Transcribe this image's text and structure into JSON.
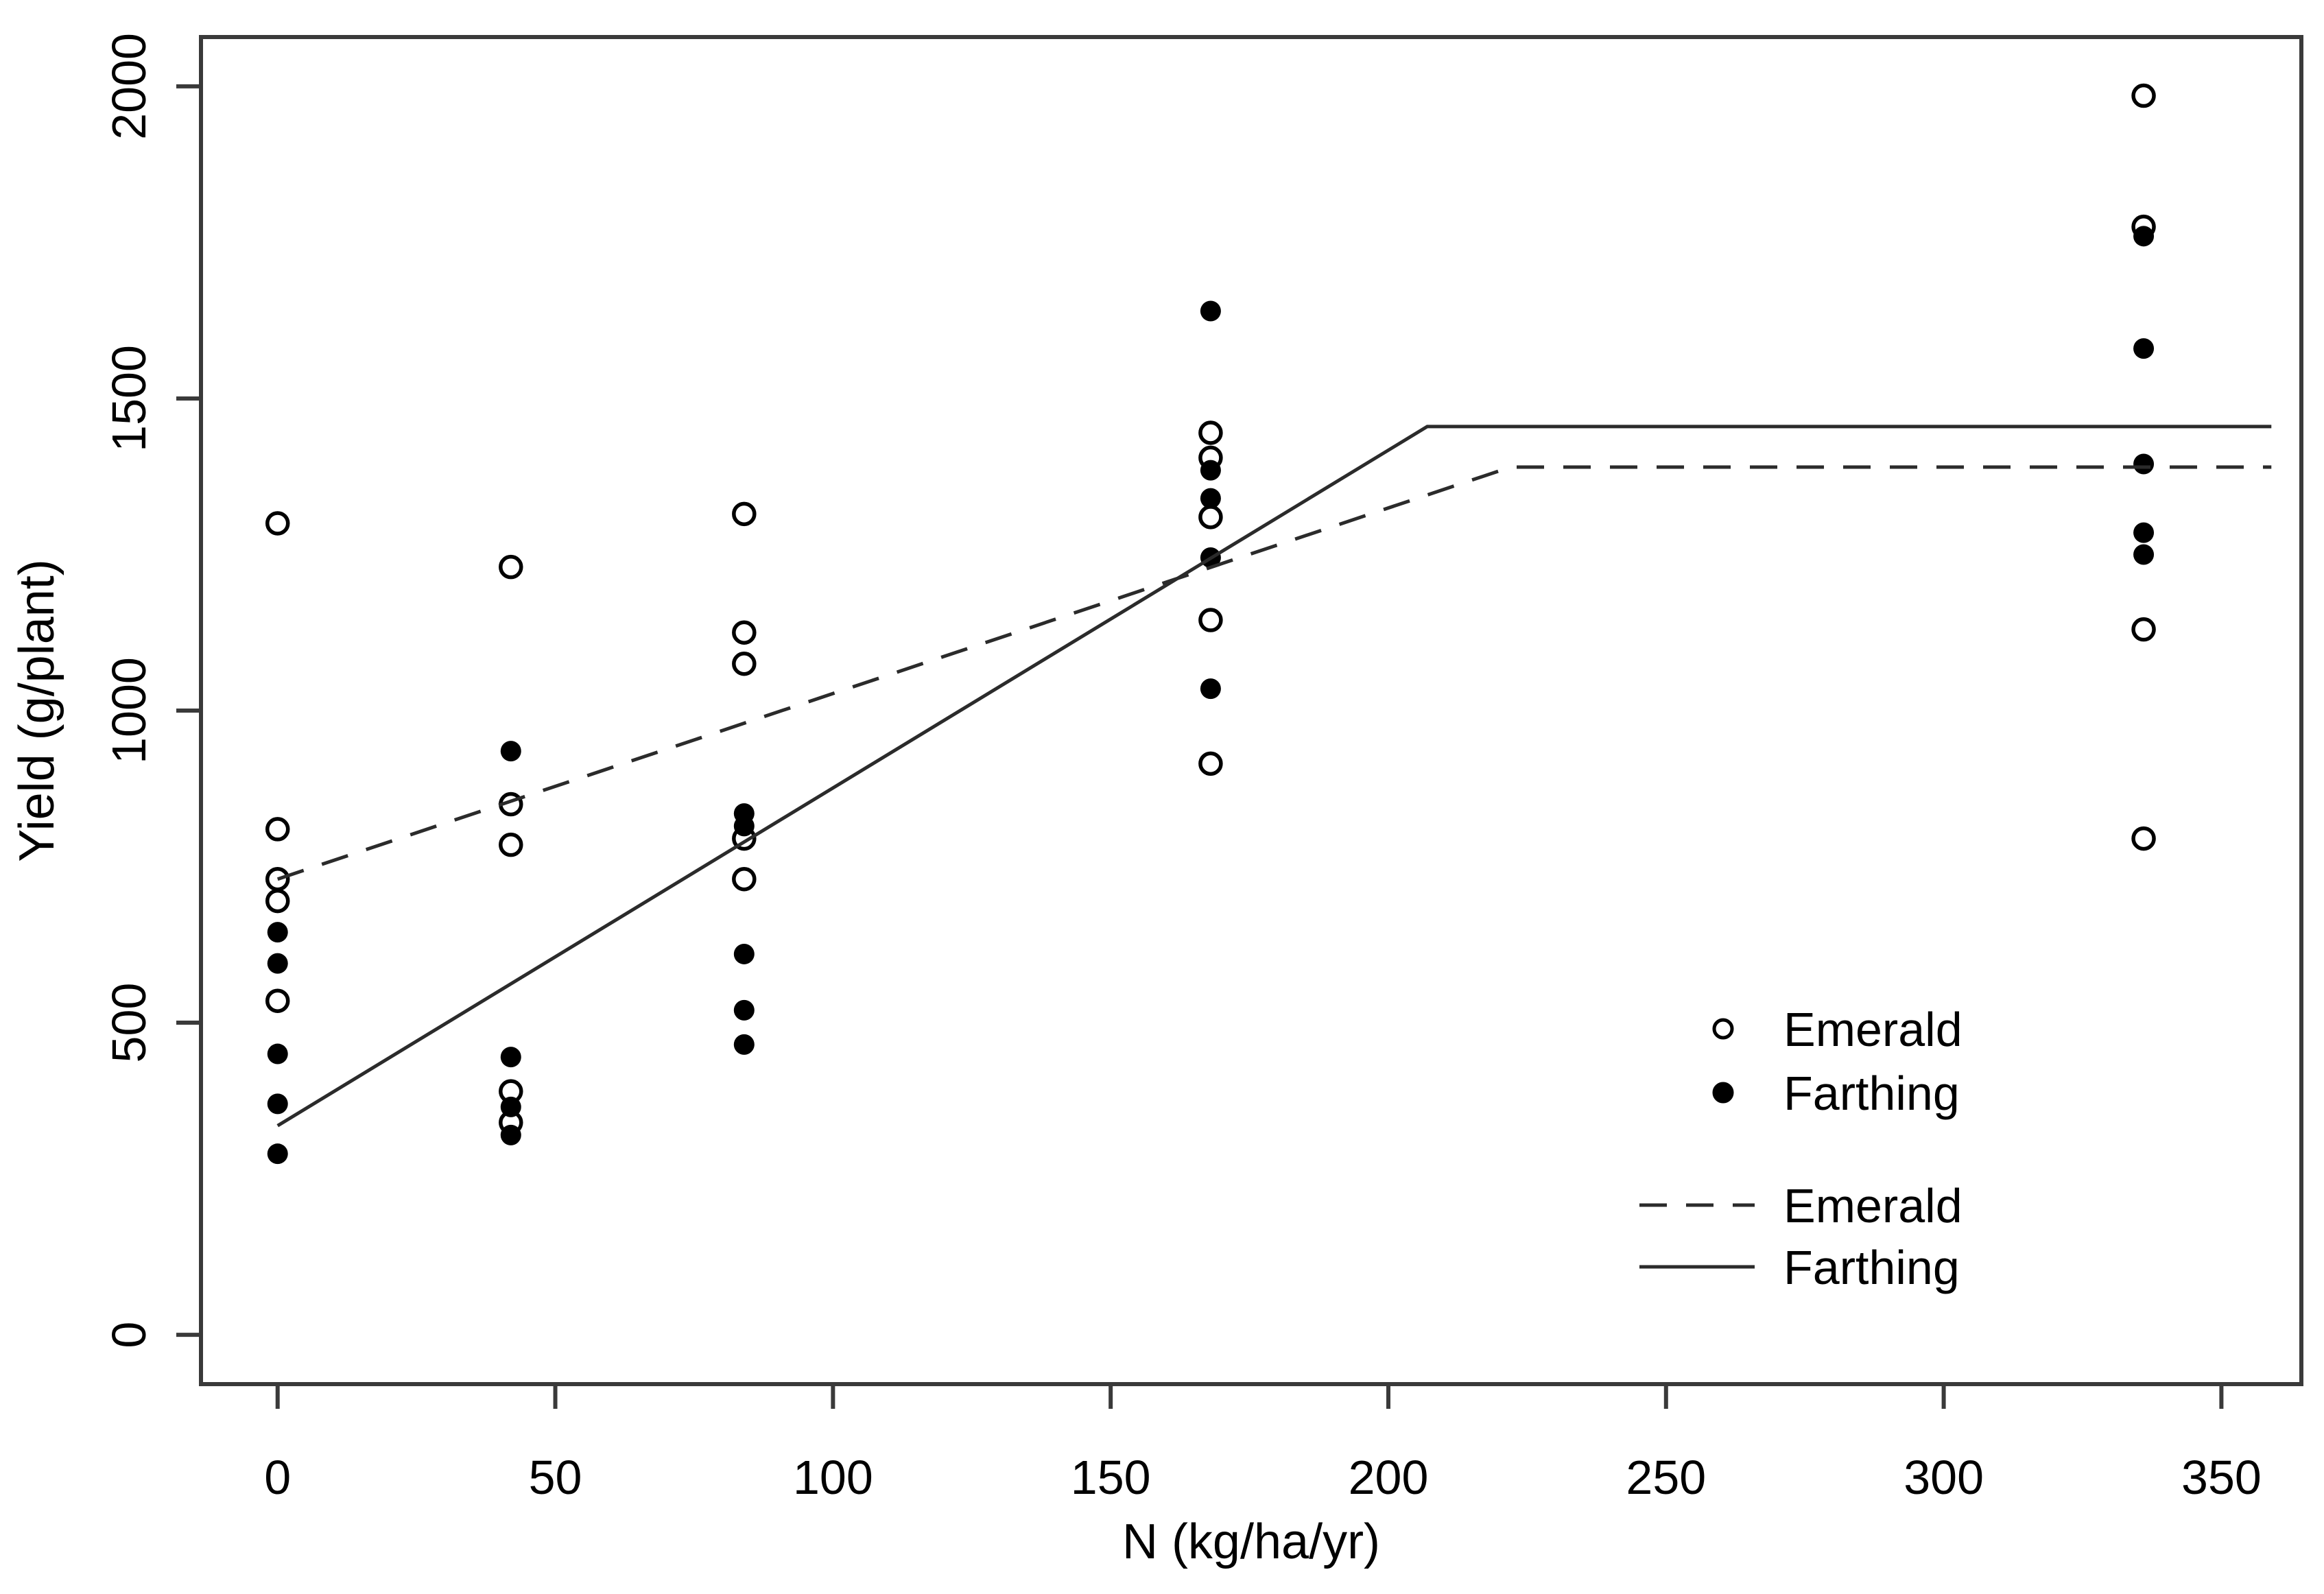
{
  "figure": {
    "background": "#ffffff",
    "axis_color": "#3a3a3a",
    "text_color": "#000000",
    "point_color": "#000000"
  },
  "chart_data": {
    "type": "scatter",
    "title": "",
    "xlabel": "N (kg/ha/yr)",
    "ylabel": "Yield (g/plant)",
    "xlim": [
      -13.8,
      364.4
    ],
    "ylim": [
      -79,
      2079
    ],
    "x_ticks": [
      0,
      50,
      100,
      150,
      200,
      250,
      300,
      350
    ],
    "y_ticks": [
      0,
      500,
      1000,
      1500,
      2000
    ],
    "grid": false,
    "legend_position": "inside-lower-right",
    "series": [
      {
        "name": "Emerald",
        "marker": "open-circle",
        "points": [
          [
            0,
            1300
          ],
          [
            0,
            810
          ],
          [
            0,
            730
          ],
          [
            0,
            695
          ],
          [
            0,
            535
          ],
          [
            42,
            1230
          ],
          [
            42,
            850
          ],
          [
            42,
            785
          ],
          [
            42,
            390
          ],
          [
            42,
            340
          ],
          [
            84,
            1315
          ],
          [
            84,
            1125
          ],
          [
            84,
            1075
          ],
          [
            84,
            795
          ],
          [
            84,
            730
          ],
          [
            168,
            1445
          ],
          [
            168,
            1405
          ],
          [
            168,
            1310
          ],
          [
            168,
            1145
          ],
          [
            168,
            915
          ],
          [
            336,
            1985
          ],
          [
            336,
            1775
          ],
          [
            336,
            1130
          ],
          [
            336,
            795
          ]
        ]
      },
      {
        "name": "Farthing",
        "marker": "filled-circle",
        "points": [
          [
            0,
            645
          ],
          [
            0,
            595
          ],
          [
            0,
            450
          ],
          [
            0,
            370
          ],
          [
            0,
            290
          ],
          [
            42,
            935
          ],
          [
            42,
            445
          ],
          [
            42,
            365
          ],
          [
            42,
            320
          ],
          [
            84,
            835
          ],
          [
            84,
            815
          ],
          [
            84,
            610
          ],
          [
            84,
            520
          ],
          [
            84,
            465
          ],
          [
            168,
            1640
          ],
          [
            168,
            1385
          ],
          [
            168,
            1340
          ],
          [
            168,
            1245
          ],
          [
            168,
            1035
          ],
          [
            336,
            1760
          ],
          [
            336,
            1580
          ],
          [
            336,
            1395
          ],
          [
            336,
            1285
          ],
          [
            336,
            1250
          ]
        ]
      }
    ],
    "fit_lines": [
      {
        "name": "Emerald",
        "style": "dashed",
        "model": "linear-plateau",
        "intercept": 730,
        "slope": 2.97,
        "breakpoint": 222,
        "plateau": 1390,
        "x_start": 0,
        "x_end": 359
      },
      {
        "name": "Farthing",
        "style": "solid",
        "model": "linear-plateau",
        "intercept": 335,
        "slope": 5.41,
        "breakpoint": 207,
        "plateau": 1455,
        "x_start": 0,
        "x_end": 359
      }
    ],
    "legend": [
      {
        "label": "Emerald",
        "symbol": "open-circle"
      },
      {
        "label": "Farthing",
        "symbol": "filled-circle"
      },
      {
        "label": "Emerald",
        "symbol": "dashed-line"
      },
      {
        "label": "Farthing",
        "symbol": "solid-line"
      }
    ]
  }
}
